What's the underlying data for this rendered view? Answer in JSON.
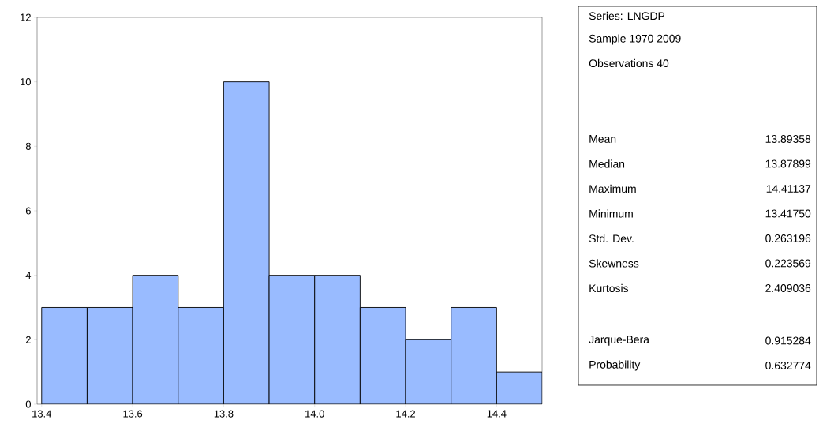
{
  "chart_data": {
    "type": "histogram",
    "bins": [
      13.4,
      13.5,
      13.6,
      13.7,
      13.8,
      13.9,
      14.0,
      14.1,
      14.2,
      14.3,
      14.4,
      14.5
    ],
    "values": [
      3,
      3,
      4,
      3,
      10,
      4,
      4,
      3,
      2,
      3,
      1
    ],
    "color": "#99bbff",
    "xlim": [
      13.39,
      14.5
    ],
    "ylim": [
      0,
      12
    ],
    "xticks": [
      {
        "value": 13.4,
        "label": "13.4"
      },
      {
        "value": 13.6,
        "label": "13.6"
      },
      {
        "value": 13.8,
        "label": "13.8"
      },
      {
        "value": 14.0,
        "label": "14.0"
      },
      {
        "value": 14.2,
        "label": "14.2"
      },
      {
        "value": 14.4,
        "label": "14.4"
      }
    ],
    "yticks": [
      0,
      2,
      4,
      6,
      8,
      10,
      12
    ],
    "grid": false,
    "annotations": [
      "Series: LNGDP",
      "Sample 1970 2009",
      "Observations 40",
      "Mean",
      "13.89358",
      "Median",
      "13.87899",
      "Maximum",
      "14.41137",
      "Minimum",
      "13.41750",
      "Std. Dev.",
      "0.263196",
      "Skewness",
      "0.223569",
      "Kurtosis",
      "2.409036",
      "Jarque-Bera",
      "0.915284",
      "Probability",
      "0.632774"
    ]
  }
}
